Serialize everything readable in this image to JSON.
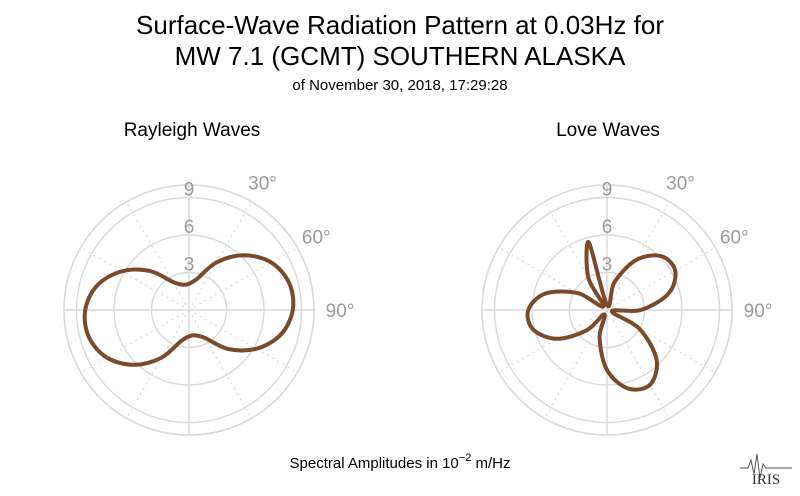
{
  "title_line1": "Surface-Wave Radiation Pattern at 0.03Hz for",
  "title_line2": "MW 7.1 (GCMT) SOUTHERN ALASKA",
  "subtitle": "of November 30, 2018, 17:29:28",
  "footer": {
    "prefix": "Spectral Amplitudes in ",
    "base": "10",
    "exponent": "−2",
    "suffix": " m/Hz"
  },
  "logo_text": "IRIS",
  "colors": {
    "pattern": "#7a4a2b",
    "grid": "#d9d9d9",
    "tick_text": "#9a9a9a"
  },
  "chart_data": [
    {
      "type": "polar",
      "title": "Rayleigh Waves",
      "r_ticks": [
        "3",
        "6",
        "9"
      ],
      "r_max": 10,
      "angle_ticks": [
        "30°",
        "60°",
        "90°"
      ],
      "grid": "dotted radial lines every 30°, solid circles",
      "series": [
        {
          "theta_deg": [
            0,
            15,
            30,
            45,
            60,
            75,
            90,
            105,
            120,
            135,
            150,
            165,
            180,
            195,
            210,
            225,
            240,
            255,
            270,
            285,
            300,
            315,
            330,
            345
          ],
          "r": [
            2.1,
            2.6,
            4.4,
            6.2,
            7.6,
            8.3,
            8.3,
            7.6,
            6.2,
            4.4,
            2.6,
            2.1,
            2.1,
            2.6,
            4.4,
            6.2,
            7.6,
            8.3,
            8.3,
            7.6,
            6.2,
            4.4,
            2.6,
            2.1
          ]
        }
      ]
    },
    {
      "type": "polar",
      "title": "Love Waves",
      "r_ticks": [
        "3",
        "6",
        "9"
      ],
      "r_max": 10,
      "angle_ticks": [
        "30°",
        "60°",
        "90°"
      ],
      "grid": "dotted radial lines every 30°, solid circles",
      "series": [
        {
          "theta_deg": [
            0,
            15,
            30,
            45,
            60,
            75,
            90,
            105,
            120,
            135,
            150,
            165,
            180,
            195,
            210,
            225,
            240,
            255,
            270,
            285,
            300,
            315,
            330,
            345
          ],
          "r": [
            0.4,
            2.3,
            4.6,
            6.1,
            6.3,
            5.1,
            2.7,
            0.4,
            3.0,
            5.6,
            6.9,
            6.5,
            4.8,
            2.3,
            0.4,
            2.3,
            4.6,
            6.1,
            6.3,
            5.1,
            2.7,
            0.4,
            3.0,
            5.6
          ]
        }
      ]
    }
  ]
}
